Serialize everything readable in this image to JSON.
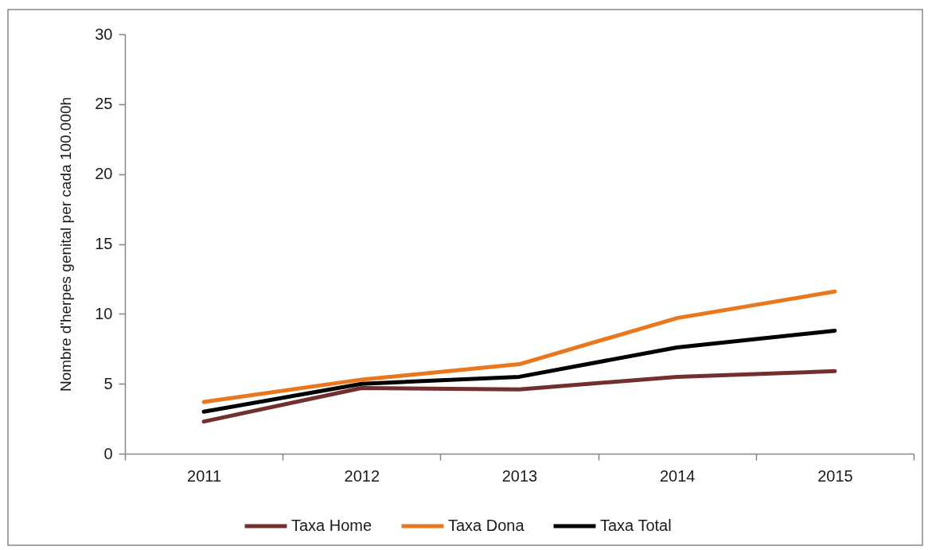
{
  "chart_data": {
    "type": "line",
    "categories": [
      "2011",
      "2012",
      "2013",
      "2014",
      "2015"
    ],
    "series": [
      {
        "name": "Taxa Home",
        "color": "#722f2f",
        "values": [
          2.3,
          4.7,
          4.6,
          5.5,
          5.9
        ]
      },
      {
        "name": "Taxa Dona",
        "color": "#e8771e",
        "values": [
          3.7,
          5.3,
          6.4,
          9.7,
          11.6
        ]
      },
      {
        "name": "Taxa Total",
        "color": "#000000",
        "values": [
          3.0,
          5.0,
          5.5,
          7.6,
          8.8
        ]
      }
    ],
    "ylabel": "Nombre d'herpes genital per cada 100.000h",
    "ylim": [
      0,
      30
    ],
    "yticks": [
      0,
      5,
      10,
      15,
      20,
      25,
      30
    ],
    "legend": "bottom",
    "line_style": "solid"
  }
}
